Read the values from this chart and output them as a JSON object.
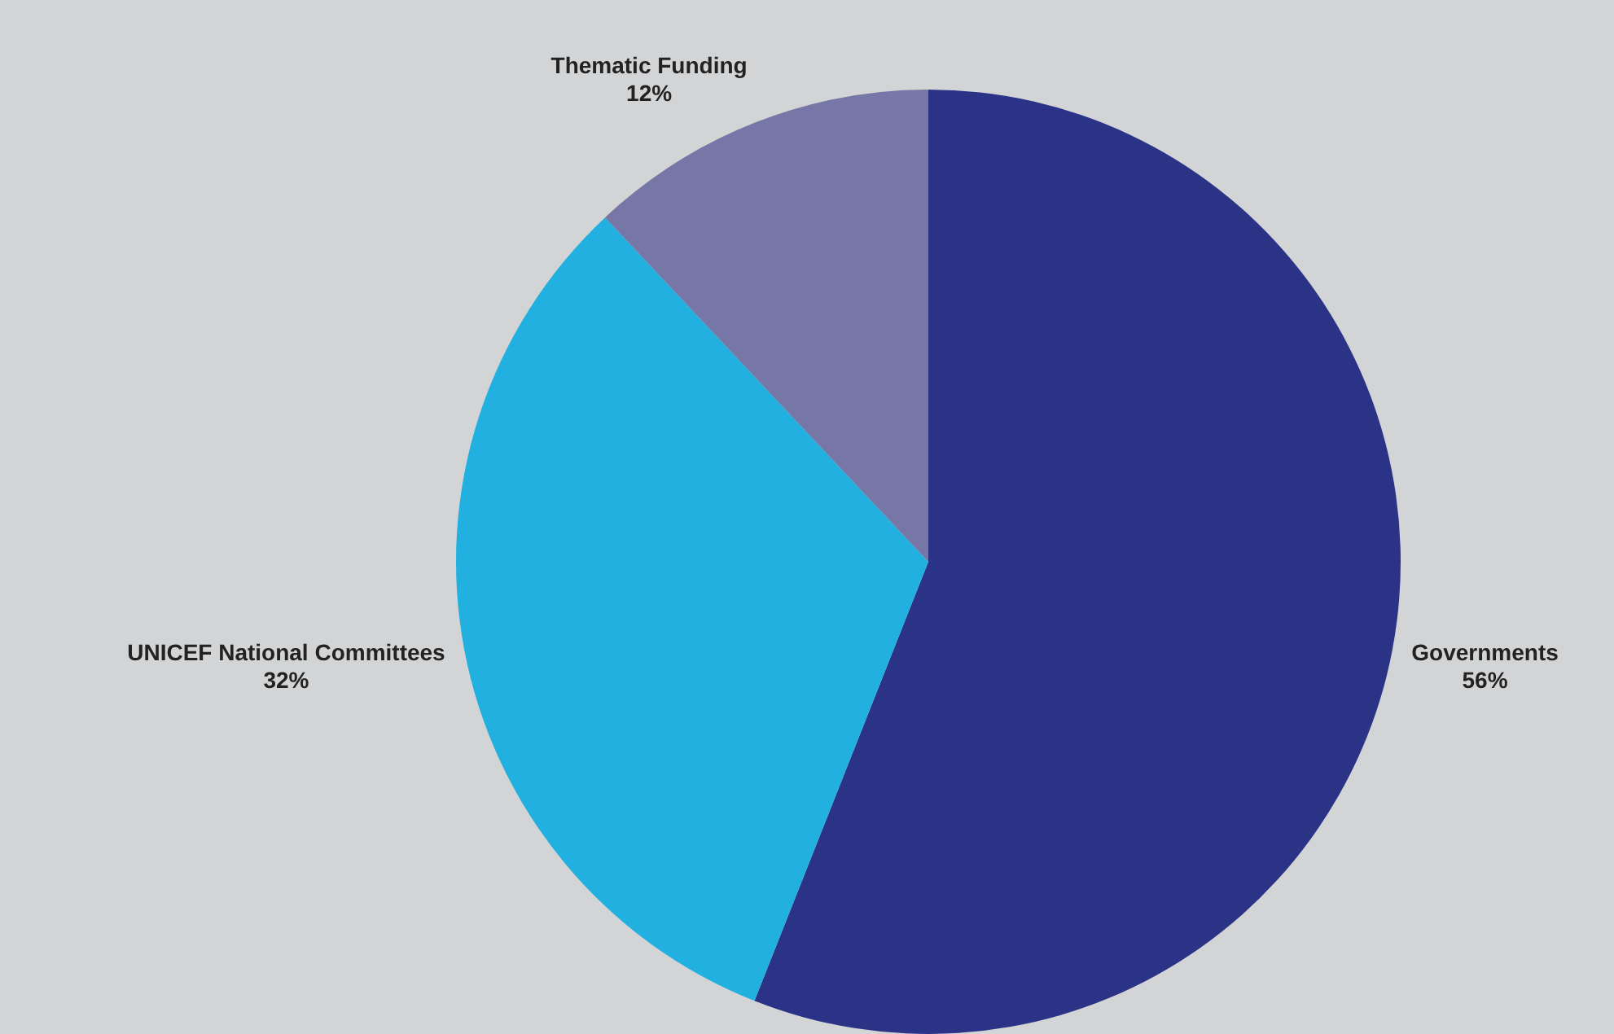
{
  "chart_data": {
    "type": "pie",
    "categories": [
      "Governments",
      "UNICEF National Committees",
      "Thematic Funding"
    ],
    "values": [
      56,
      32,
      12
    ],
    "value_labels": [
      "56%",
      "32%",
      "12%"
    ],
    "colors": [
      "#2a3386",
      "#21b0e0",
      "#7677a6"
    ]
  }
}
